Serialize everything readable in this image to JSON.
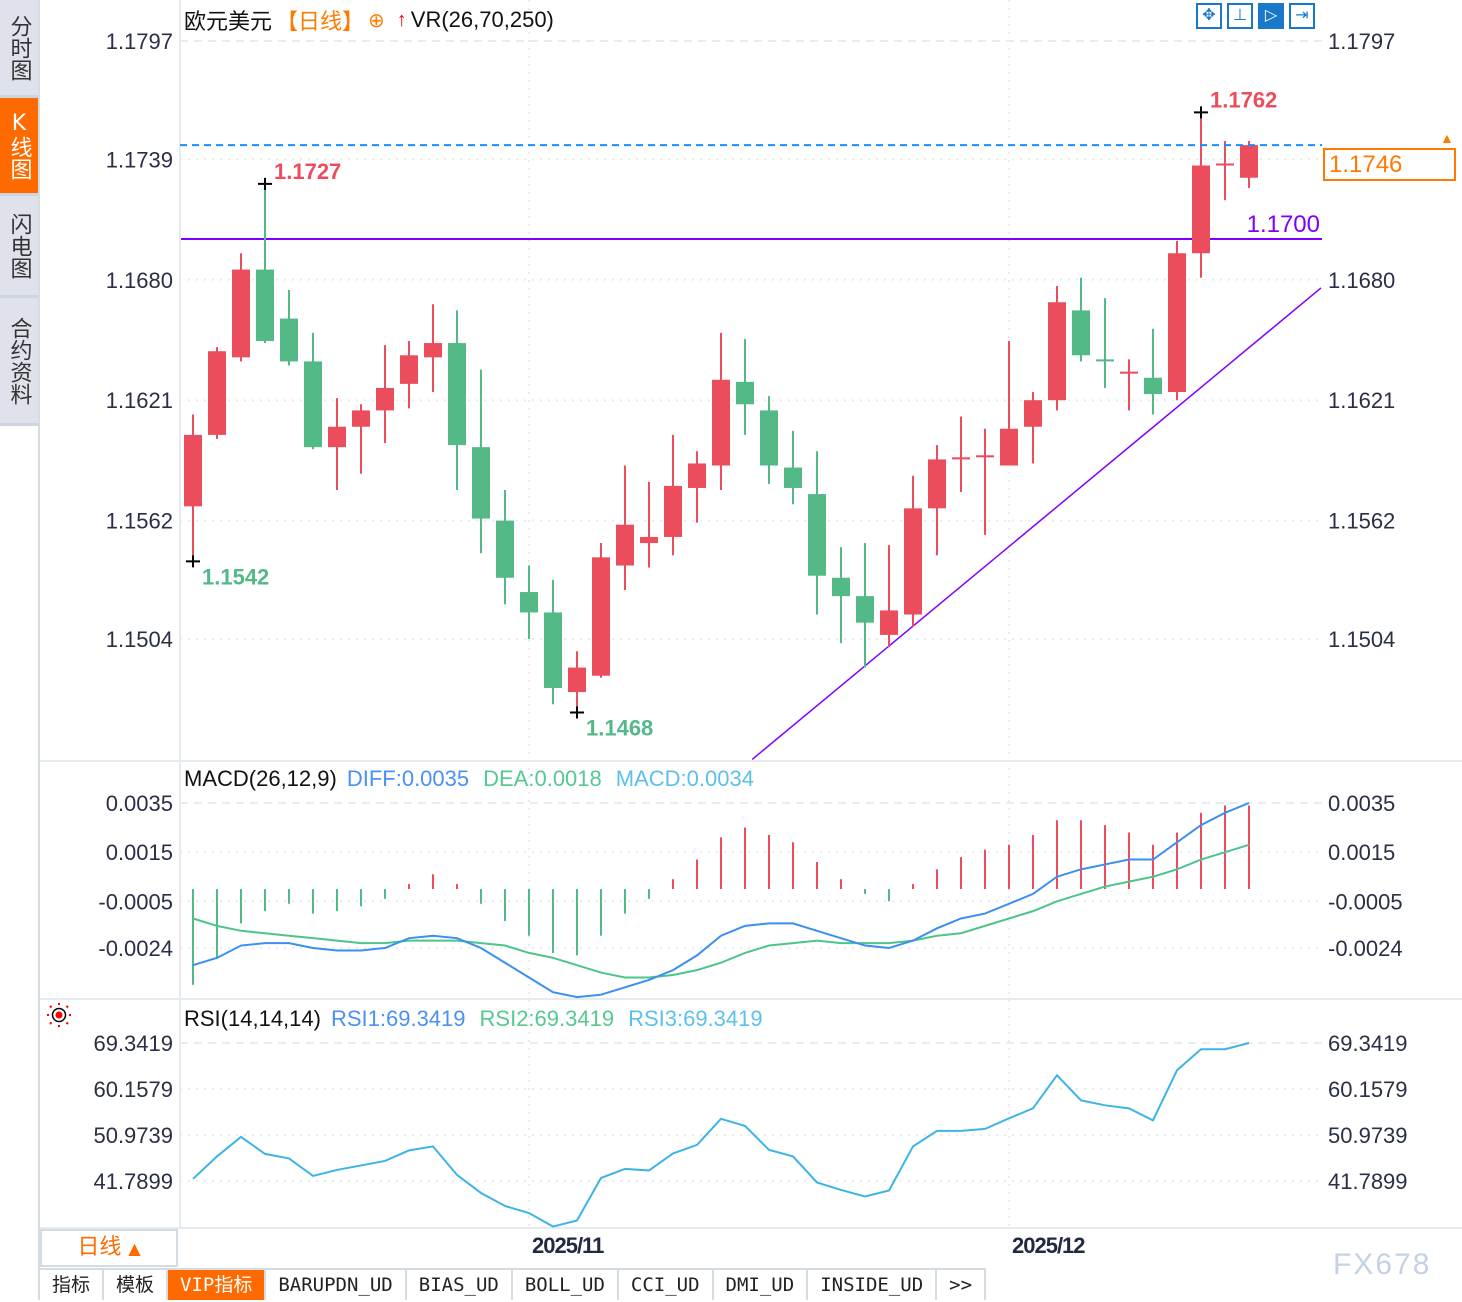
{
  "sidebar": {
    "tabs": [
      {
        "label": "分时图",
        "active": false
      },
      {
        "label": "K线图",
        "active": true
      },
      {
        "label": "闪电图",
        "active": false
      },
      {
        "label": "合约资料",
        "active": false
      }
    ]
  },
  "header": {
    "symbol": "欧元美元",
    "period": "【日线】",
    "add_icon": "circle-plus-icon",
    "arrow_icon": "red-up-arrow-icon",
    "indicator": "VR(26,70,250)"
  },
  "toolbar": {
    "icons": [
      "crosshair-icon",
      "range-select-icon",
      "play-cursor-icon",
      "move-right-icon"
    ],
    "active_index": 2
  },
  "colors": {
    "up": "#eb4d5c",
    "down": "#52b987",
    "accent": "#ff6a00",
    "hline": "#8000ff",
    "price_line": "#1a8cff",
    "diff": "#3a8ff0",
    "dea": "#4cc48a",
    "macd_label": "#5bc0eb",
    "rsi": "#3db4e6"
  },
  "chart_data": [
    {
      "type": "candlestick",
      "title": "欧元美元",
      "period": "日线",
      "candle_fields": [
        "open",
        "high",
        "low",
        "close"
      ],
      "candles": [
        [
          1.1569,
          1.1614,
          1.1542,
          1.1604
        ],
        [
          1.1604,
          1.1647,
          1.1602,
          1.1645
        ],
        [
          1.1642,
          1.1693,
          1.164,
          1.1685
        ],
        [
          1.1685,
          1.1727,
          1.1649,
          1.165
        ],
        [
          1.1661,
          1.1675,
          1.1638,
          1.164
        ],
        [
          1.164,
          1.1654,
          1.1597,
          1.1598
        ],
        [
          1.1598,
          1.1622,
          1.1577,
          1.1608
        ],
        [
          1.1608,
          1.1619,
          1.1585,
          1.1616
        ],
        [
          1.1616,
          1.1648,
          1.16,
          1.1627
        ],
        [
          1.1629,
          1.165,
          1.1617,
          1.1643
        ],
        [
          1.1642,
          1.1668,
          1.1625,
          1.1649
        ],
        [
          1.1649,
          1.1665,
          1.1577,
          1.1599
        ],
        [
          1.1598,
          1.1636,
          1.1546,
          1.1563
        ],
        [
          1.1562,
          1.1577,
          1.1521,
          1.1534
        ],
        [
          1.1527,
          1.154,
          1.1504,
          1.1517
        ],
        [
          1.1517,
          1.1533,
          1.1472,
          1.148
        ],
        [
          1.1478,
          1.1498,
          1.1468,
          1.149
        ],
        [
          1.1486,
          1.1551,
          1.1485,
          1.1544
        ],
        [
          1.154,
          1.1589,
          1.1528,
          1.156
        ],
        [
          1.1551,
          1.1581,
          1.1539,
          1.1554
        ],
        [
          1.1554,
          1.1604,
          1.1545,
          1.1579
        ],
        [
          1.1578,
          1.1596,
          1.1561,
          1.159
        ],
        [
          1.1589,
          1.1654,
          1.1577,
          1.1631
        ],
        [
          1.163,
          1.1651,
          1.1604,
          1.1619
        ],
        [
          1.1616,
          1.1623,
          1.158,
          1.1589
        ],
        [
          1.1588,
          1.1606,
          1.157,
          1.1578
        ],
        [
          1.1575,
          1.1596,
          1.1516,
          1.1535
        ],
        [
          1.1534,
          1.1549,
          1.1502,
          1.1525
        ],
        [
          1.1525,
          1.1551,
          1.149,
          1.1512
        ],
        [
          1.1506,
          1.155,
          1.15,
          1.1518
        ],
        [
          1.1516,
          1.1584,
          1.151,
          1.1568
        ],
        [
          1.1568,
          1.1599,
          1.1545,
          1.1592
        ],
        [
          1.1592,
          1.1613,
          1.1576,
          1.1593
        ],
        [
          1.1593,
          1.1607,
          1.1555,
          1.1594
        ],
        [
          1.1589,
          1.165,
          1.1589,
          1.1607
        ],
        [
          1.1608,
          1.1625,
          1.159,
          1.1621
        ],
        [
          1.1621,
          1.1677,
          1.1616,
          1.1669
        ],
        [
          1.1665,
          1.1681,
          1.164,
          1.1643
        ],
        [
          1.1641,
          1.1671,
          1.1627,
          1.164
        ],
        [
          1.1634,
          1.1641,
          1.1616,
          1.1635
        ],
        [
          1.1632,
          1.1656,
          1.1614,
          1.1624
        ],
        [
          1.1625,
          1.1699,
          1.1621,
          1.1693
        ],
        [
          1.1693,
          1.1762,
          1.1681,
          1.1736
        ],
        [
          1.1736,
          1.1748,
          1.1719,
          1.1737
        ],
        [
          1.173,
          1.1748,
          1.1725,
          1.1746
        ]
      ],
      "y_ticks": [
        "1.1797",
        "1.1739",
        "1.1680",
        "1.1621",
        "1.1562",
        "1.1504"
      ],
      "ylim": [
        1.1445,
        1.1797
      ],
      "x_ticks": [
        {
          "label": "2025/11",
          "bar": 14
        },
        {
          "label": "2025/12",
          "bar": 34
        }
      ],
      "annotations": {
        "high_left": {
          "label": "1.1727",
          "bar": 3,
          "price": 1.1727
        },
        "low_left": {
          "label": "1.1542",
          "bar": 0,
          "price": 1.1542
        },
        "low_mid": {
          "label": "1.1468",
          "bar": 16,
          "price": 1.1468
        },
        "high_right": {
          "label": "1.1762",
          "bar": 42,
          "price": 1.1762
        }
      },
      "horizontal_line": {
        "label": "1.1700",
        "price": 1.17
      },
      "last_price": {
        "label": "1.1746",
        "price": 1.1746
      },
      "trendline": [
        {
          "bar": 23.3,
          "price": 1.1445
        },
        {
          "bar": 47.0,
          "price": 1.1676
        }
      ],
      "grid": true
    },
    {
      "type": "macd",
      "title": "MACD(26,12,9)",
      "legend": {
        "diff": "DIFF:0.0035",
        "dea": "DEA:0.0018",
        "macd": "MACD:0.0034"
      },
      "y_ticks": [
        "0.0035",
        "0.0015",
        "-0.0005",
        "-0.0024"
      ],
      "diff": [
        -0.0031,
        -0.0028,
        -0.0023,
        -0.0022,
        -0.0022,
        -0.0024,
        -0.0025,
        -0.0025,
        -0.0024,
        -0.002,
        -0.0019,
        -0.002,
        -0.0024,
        -0.003,
        -0.0036,
        -0.0042,
        -0.0044,
        -0.0043,
        -0.004,
        -0.0037,
        -0.0033,
        -0.0027,
        -0.0019,
        -0.0015,
        -0.0014,
        -0.0014,
        -0.0017,
        -0.002,
        -0.0023,
        -0.0024,
        -0.0021,
        -0.0016,
        -0.0012,
        -0.001,
        -0.0006,
        -0.0002,
        0.0005,
        0.0008,
        0.001,
        0.0012,
        0.0012,
        0.0019,
        0.0026,
        0.0031,
        0.0035
      ],
      "dea": [
        -0.0012,
        -0.0015,
        -0.0017,
        -0.0018,
        -0.0019,
        -0.002,
        -0.0021,
        -0.0022,
        -0.0022,
        -0.0021,
        -0.0021,
        -0.0021,
        -0.0022,
        -0.0023,
        -0.0026,
        -0.0028,
        -0.0031,
        -0.0034,
        -0.0036,
        -0.0036,
        -0.0035,
        -0.0033,
        -0.003,
        -0.0026,
        -0.0023,
        -0.0022,
        -0.0021,
        -0.0022,
        -0.0022,
        -0.0022,
        -0.0021,
        -0.0019,
        -0.0018,
        -0.0015,
        -0.0012,
        -0.0009,
        -0.0005,
        -0.0002,
        0.0001,
        0.0003,
        0.0005,
        0.0008,
        0.0012,
        0.0015,
        0.0018
      ],
      "macd": [
        -0.0039,
        -0.0028,
        -0.0014,
        -0.0009,
        -0.0006,
        -0.001,
        -0.0009,
        -0.0007,
        -0.0004,
        0.0002,
        0.0006,
        0.0002,
        -0.0006,
        -0.0013,
        -0.0019,
        -0.0026,
        -0.0027,
        -0.0019,
        -0.001,
        -0.0004,
        0.0004,
        0.0012,
        0.0021,
        0.0025,
        0.0022,
        0.0019,
        0.0011,
        0.0004,
        -0.0002,
        -0.0005,
        0.0002,
        0.0008,
        0.0013,
        0.0016,
        0.0018,
        0.0022,
        0.0028,
        0.0028,
        0.0026,
        0.0023,
        0.0018,
        0.0023,
        0.0031,
        0.0034,
        0.0034
      ]
    },
    {
      "type": "line",
      "title": "RSI(14,14,14)",
      "legend": {
        "rsi1": "RSI1:69.3419",
        "rsi2": "RSI2:69.3419",
        "rsi3": "RSI3:69.3419"
      },
      "y_ticks": [
        "69.3419",
        "60.1579",
        "50.9739",
        "41.7899"
      ],
      "rsi": [
        42.2,
        46.7,
        50.6,
        47.2,
        46.3,
        42.8,
        44.0,
        44.9,
        45.8,
        47.9,
        48.7,
        43.0,
        39.4,
        36.8,
        35.4,
        32.7,
        33.9,
        42.4,
        44.2,
        43.9,
        47.3,
        49.0,
        54.2,
        52.8,
        48.0,
        46.7,
        41.5,
        40.0,
        38.7,
        39.9,
        48.7,
        51.8,
        51.8,
        52.2,
        54.3,
        56.3,
        62.9,
        57.9,
        56.9,
        56.3,
        53.9,
        63.9,
        68.1,
        68.1,
        69.3419
      ]
    }
  ],
  "rsi_icon": "sun-target-icon",
  "period_selector": {
    "label": "日线",
    "icon": "triangle-up-icon"
  },
  "bottom_tabs": [
    {
      "label": "指标",
      "active": false
    },
    {
      "label": "模板",
      "active": false
    },
    {
      "label": "VIP指标",
      "active": true
    },
    {
      "label": "BARUPDN_UD",
      "active": false
    },
    {
      "label": "BIAS_UD",
      "active": false
    },
    {
      "label": "BOLL_UD",
      "active": false
    },
    {
      "label": "CCI_UD",
      "active": false
    },
    {
      "label": "DMI_UD",
      "active": false
    },
    {
      "label": "INSIDE_UD",
      "active": false
    },
    {
      "label": ">>",
      "active": false
    }
  ],
  "watermark": "FX678"
}
